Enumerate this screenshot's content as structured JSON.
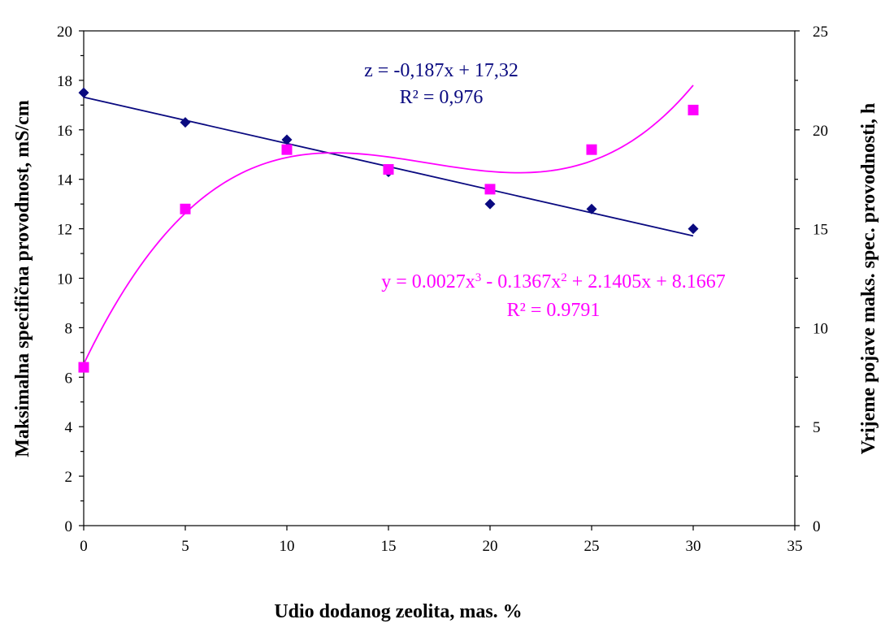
{
  "chart_data": {
    "type": "scatter",
    "x_label": "Udio dodanog zeolita, mas. %",
    "y_left_label": "Maksimalna specifična provodnost, mS/cm",
    "y_right_label": "Vrijeme pojave maks. spec. provodnosti, h",
    "x_range": [
      0,
      35
    ],
    "y_left_range": [
      0,
      20
    ],
    "y_right_range": [
      0,
      25
    ],
    "x_ticks": [
      "0",
      "5",
      "10",
      "15",
      "20",
      "25",
      "30",
      "35"
    ],
    "y_left_ticks": [
      "0",
      "2",
      "4",
      "6",
      "8",
      "10",
      "12",
      "14",
      "16",
      "18",
      "20"
    ],
    "y_right_ticks": [
      "0",
      "5",
      "10",
      "15",
      "20",
      "25"
    ],
    "grid": false,
    "series": [
      {
        "axis": "left",
        "marker": "diamond",
        "color": "#0A0A80",
        "x": [
          0,
          5,
          10,
          15,
          20,
          25,
          30
        ],
        "y": [
          17.5,
          16.3,
          15.6,
          14.3,
          13.0,
          12.8,
          12.0
        ],
        "trend": {
          "kind": "linear",
          "coefficients": [
            -0.187,
            17.32
          ]
        }
      },
      {
        "axis": "right",
        "marker": "square",
        "color": "#FF00FF",
        "x": [
          0,
          5,
          10,
          15,
          20,
          25,
          30
        ],
        "y": [
          8.0,
          16.0,
          19.0,
          18.0,
          17.0,
          19.0,
          21.0
        ],
        "trend": {
          "kind": "poly3",
          "coefficients": [
            0.0027,
            -0.1367,
            2.1405,
            8.1667
          ]
        }
      }
    ],
    "annotations": [
      {
        "id": "lin_eq",
        "text": "z = -0,187x + 17,32",
        "color": "#0A0A80"
      },
      {
        "id": "lin_r2",
        "text": "R² = 0,976",
        "color": "#0A0A80"
      },
      {
        "id": "poly_eq_a",
        "text": "y = 0.0027x",
        "sup1": "3",
        "text_b": " - 0.1367x",
        "sup2": "2",
        "text_c": " + 2.1405x + 8.1667",
        "color": "#FF00FF"
      },
      {
        "id": "poly_r2",
        "text": "R² = 0.9791",
        "color": "#FF00FF"
      }
    ]
  }
}
